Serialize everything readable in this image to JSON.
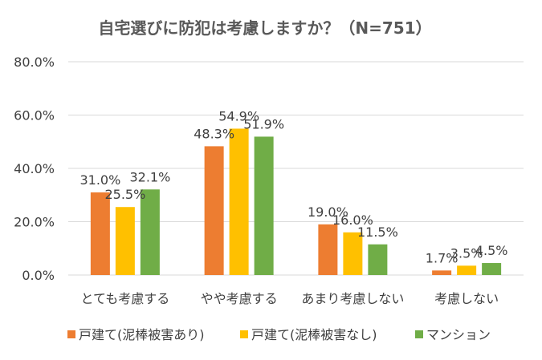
{
  "chart_data": {
    "type": "bar",
    "title": "自宅選びに防犯は考慮しますか？（N=751）",
    "categories": [
      "とても考慮する",
      "やや考慮する",
      "あまり考慮しない",
      "考慮しない"
    ],
    "series": [
      {
        "name": "戸建て(泥棒被害あり)",
        "color": "#ed7d31",
        "values": [
          31.0,
          48.3,
          19.0,
          1.7
        ],
        "labels": [
          "31.0%",
          "48.3%",
          "19.0%",
          "1.7%"
        ]
      },
      {
        "name": "戸建て(泥棒被害なし)",
        "color": "#ffc000",
        "values": [
          25.5,
          54.9,
          16.0,
          3.5
        ],
        "labels": [
          "25.5%",
          "54.9%",
          "16.0%",
          "3.5%"
        ]
      },
      {
        "name": "マンション",
        "color": "#70ad47",
        "values": [
          32.1,
          51.9,
          11.5,
          4.5
        ],
        "labels": [
          "32.1%",
          "51.9%",
          "11.5%",
          "4.5%"
        ]
      }
    ],
    "ylim": [
      0,
      80
    ],
    "yticks": [
      "0.0%",
      "20.0%",
      "40.0%",
      "60.0%",
      "80.0%"
    ],
    "grid": true,
    "legend_position": "bottom"
  }
}
